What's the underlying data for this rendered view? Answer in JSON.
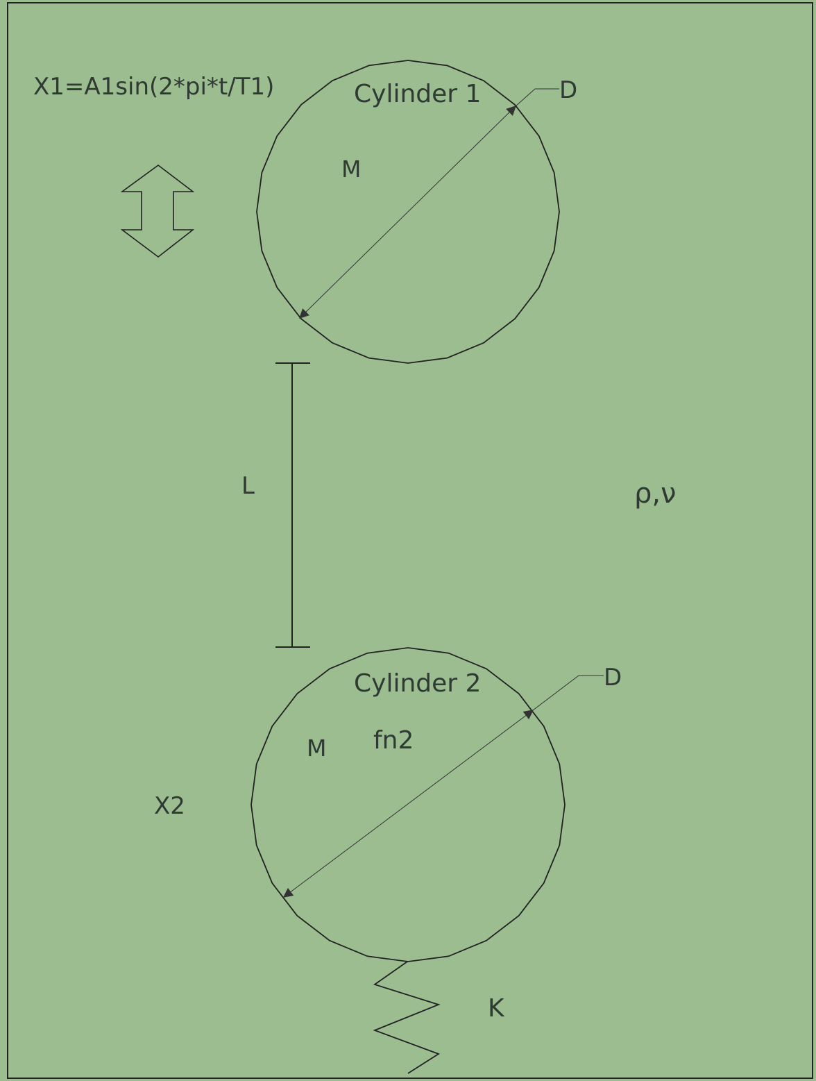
{
  "diagram": {
    "equation": "X1=A1sin(2*pi*t/T1)",
    "cylinder1": {
      "label": "Cylinder 1",
      "mass": "M",
      "diameter": "D"
    },
    "gap": {
      "label": "L"
    },
    "fluid": {
      "label": "ρ,ν"
    },
    "cylinder2": {
      "label": "Cylinder 2",
      "mass": "M",
      "freq": "fn2",
      "diameter": "D"
    },
    "displacement2": "X2",
    "spring": {
      "label": "K"
    }
  },
  "colors": {
    "background": "#9bbd90",
    "stroke": "#222222",
    "text": "#2f3a33"
  }
}
